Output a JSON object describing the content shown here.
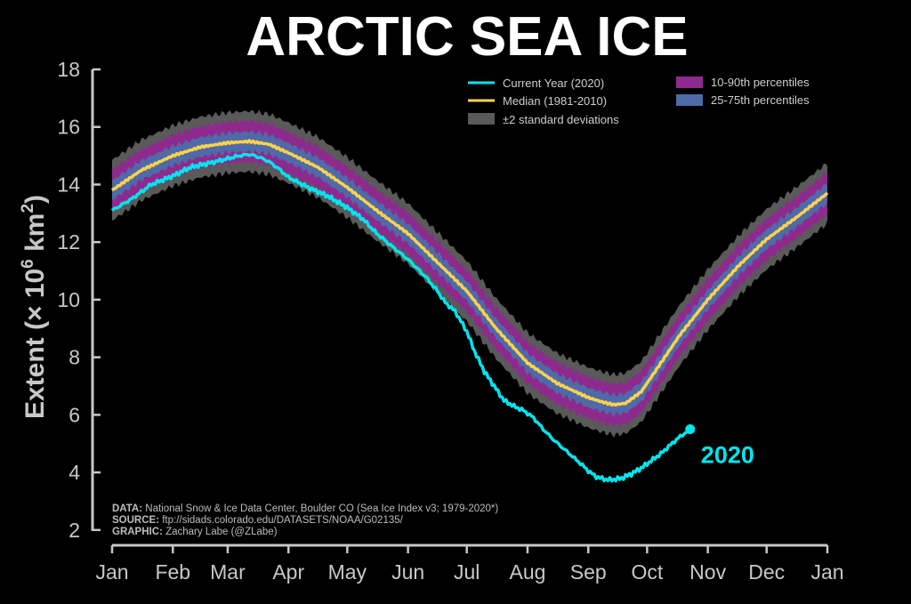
{
  "chart_data": {
    "type": "line",
    "title": "ARCTIC SEA ICE",
    "ylabel_main": "Extent (",
    "ylabel_sym": "× 10",
    "ylabel_exp1": "6",
    "ylabel_unit": " km",
    "ylabel_exp2": "2",
    "ylabel_close": ")",
    "ylim": [
      1.5,
      18
    ],
    "yticks": [
      2,
      4,
      6,
      8,
      10,
      12,
      14,
      16,
      18
    ],
    "xlim": [
      0,
      365
    ],
    "month_labels": [
      "Jan",
      "Feb",
      "Mar",
      "Apr",
      "May",
      "Jun",
      "Jul",
      "Aug",
      "Sep",
      "Oct",
      "Nov",
      "Dec",
      "Jan"
    ],
    "month_positions": [
      0,
      31,
      59,
      90,
      120,
      151,
      181,
      212,
      243,
      273,
      304,
      334,
      365
    ],
    "grid": false,
    "legend_position": "top-right",
    "legend": {
      "current": "Current Year (2020)",
      "median": "Median (1981-2010)",
      "std": "±2 standard deviations",
      "p1090": "10-90th percentiles",
      "p2575": "25-75th percentiles"
    },
    "colors": {
      "current": "#00e5ee",
      "median": "#ffd24a",
      "std": "#5a5a5a",
      "p1090": "#8e2a8e",
      "p2575": "#4f6aa8",
      "axis": "#c8c8c8"
    },
    "band_halfwidths": {
      "std": 1.05,
      "p1090": 0.72,
      "p2575": 0.34
    },
    "median": {
      "x": [
        0,
        15,
        31,
        45,
        59,
        70,
        80,
        90,
        105,
        120,
        135,
        151,
        166,
        181,
        196,
        212,
        227,
        243,
        250,
        256,
        262,
        270,
        280,
        290,
        304,
        320,
        334,
        350,
        365
      ],
      "y": [
        13.8,
        14.5,
        15.0,
        15.3,
        15.45,
        15.5,
        15.4,
        15.1,
        14.6,
        13.9,
        13.1,
        12.3,
        11.3,
        10.3,
        9.0,
        7.8,
        7.1,
        6.6,
        6.45,
        6.35,
        6.4,
        6.8,
        7.8,
        8.8,
        10.0,
        11.2,
        12.1,
        12.9,
        13.7
      ]
    },
    "current": {
      "series_name": "2020",
      "x": [
        0,
        10,
        20,
        31,
        40,
        50,
        59,
        65,
        70,
        75,
        80,
        85,
        90,
        100,
        110,
        115,
        120,
        128,
        135,
        142,
        151,
        160,
        166,
        170,
        175,
        181,
        185,
        190,
        195,
        200,
        205,
        210,
        215,
        220,
        225,
        230,
        235,
        240,
        243,
        247,
        252,
        256,
        260,
        265,
        270,
        275,
        280,
        284,
        289,
        295
      ],
      "y": [
        13.1,
        13.5,
        14.0,
        14.3,
        14.6,
        14.75,
        14.9,
        15.0,
        15.05,
        14.95,
        14.8,
        14.55,
        14.25,
        13.9,
        13.6,
        13.4,
        13.2,
        12.8,
        12.3,
        11.9,
        11.4,
        10.8,
        10.3,
        9.9,
        9.6,
        8.9,
        8.2,
        7.5,
        7.0,
        6.5,
        6.3,
        6.15,
        5.9,
        5.5,
        5.15,
        4.85,
        4.55,
        4.25,
        4.05,
        3.85,
        3.75,
        3.75,
        3.8,
        3.95,
        4.15,
        4.4,
        4.65,
        4.9,
        5.2,
        5.5
      ]
    },
    "current_end_label": "2020",
    "credits": [
      {
        "label": "DATA:",
        "text": " National Snow & Ice Data Center, Boulder CO (Sea Ice Index v3; 1979-2020*)"
      },
      {
        "label": "SOURCE:",
        "text": " ftp://sidads.colorado.edu/DATASETS/NOAA/G02135/"
      },
      {
        "label": "GRAPHIC:",
        "text": " Zachary Labe (@ZLabe)"
      }
    ]
  }
}
